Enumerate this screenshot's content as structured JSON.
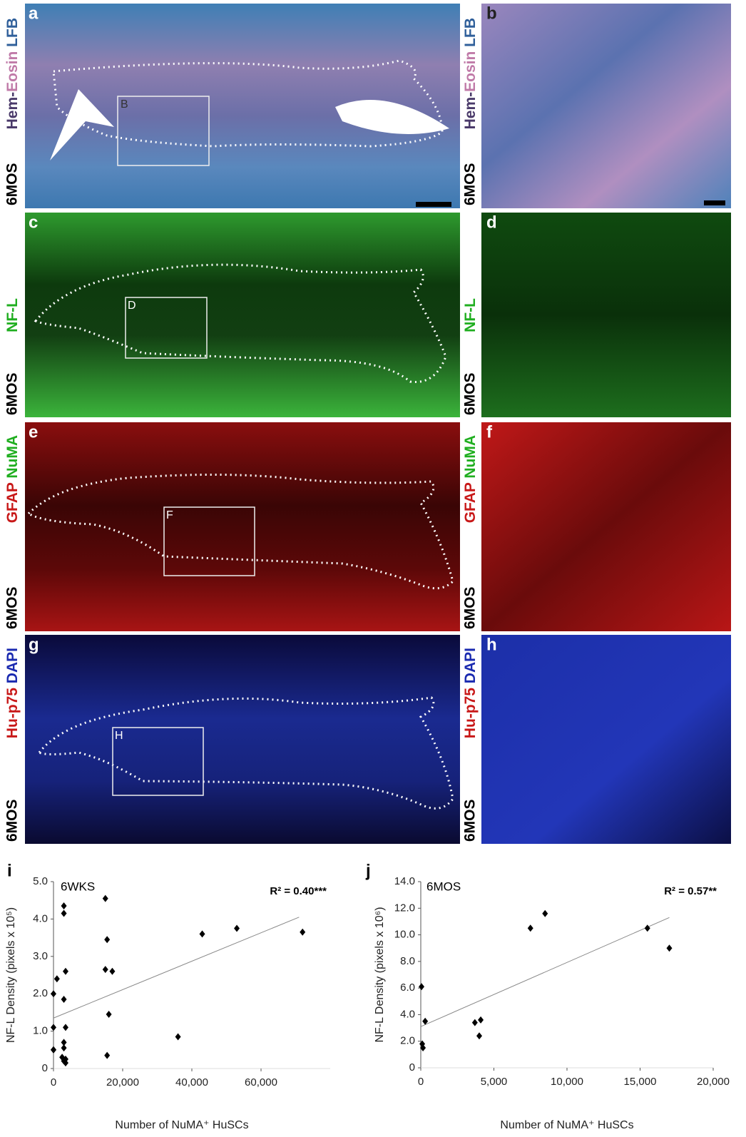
{
  "panels": [
    {
      "letter": "a",
      "stain": [
        "Hem-",
        "Eosin",
        "LFB"
      ],
      "time": "6MOS",
      "inset": "B"
    },
    {
      "letter": "b",
      "stain": [
        "Hem-",
        "Eosin",
        "LFB"
      ],
      "time": "6MOS"
    },
    {
      "letter": "c",
      "stain": [
        "NF-L"
      ],
      "time": "6MOS",
      "inset": "D"
    },
    {
      "letter": "d",
      "stain": [
        "NF-L"
      ],
      "time": "6MOS"
    },
    {
      "letter": "e",
      "stain": [
        "GFAP",
        "NuMA"
      ],
      "time": "6MOS",
      "inset": "F"
    },
    {
      "letter": "f",
      "stain": [
        "GFAP",
        "NuMA"
      ],
      "time": "6MOS"
    },
    {
      "letter": "g",
      "stain": [
        "Hu-p75",
        "DAPI"
      ],
      "time": "6MOS",
      "inset": "H"
    },
    {
      "letter": "h",
      "stain": [
        "Hu-p75",
        "DAPI"
      ],
      "time": "6MOS"
    }
  ],
  "chart_data": [
    {
      "type": "scatter",
      "label": "i",
      "title": "6WKS",
      "annotation": "R² = 0.40***",
      "x_label": "Number of NuMA⁺ HuSCs",
      "y_label": "NF-L Density (pixels x 10⁵)",
      "color": "#000000",
      "x": [
        0,
        0,
        0,
        0,
        1000,
        3000,
        3000,
        3000,
        3500,
        3500,
        3000,
        3000,
        2500,
        3000,
        3500,
        3500,
        15000,
        15500,
        15000,
        17000,
        16000,
        15500,
        36000,
        43000,
        53000,
        72000
      ],
      "values": [
        0.5,
        0.5,
        1.1,
        2.0,
        2.4,
        4.35,
        4.15,
        1.85,
        2.6,
        1.1,
        0.7,
        0.55,
        0.3,
        0.2,
        0.15,
        0.25,
        4.55,
        3.45,
        2.65,
        2.6,
        1.45,
        0.35,
        0.85,
        3.6,
        3.75,
        3.65
      ],
      "trend": {
        "x": [
          0,
          71000
        ],
        "values": [
          1.35,
          4.05
        ]
      },
      "xlim": [
        0,
        80000
      ],
      "ylim": [
        0,
        5
      ],
      "xticks": [
        0,
        {
          "value": 20000,
          "label": "20,000"
        },
        {
          "value": 40000,
          "label": "40,000"
        },
        {
          "value": 60000,
          "label": "60,000"
        }
      ],
      "yticks": [
        0,
        {
          "value": 1,
          "label": "1.0"
        },
        {
          "value": 2,
          "label": "2.0"
        },
        {
          "value": 3,
          "label": "3.0"
        },
        {
          "value": 4,
          "label": "4.0"
        },
        {
          "value": 5,
          "label": "5.0"
        }
      ]
    },
    {
      "type": "scatter",
      "label": "j",
      "title": "6MOS",
      "annotation": "R² = 0.57**",
      "x_label": "Number of NuMA⁺ HuSCs",
      "y_label": "NF-L Density (pixels x 10⁶)",
      "color": "#000000",
      "x": [
        50,
        100,
        150,
        300,
        3700,
        4100,
        4000,
        7500,
        8500,
        15500,
        17000
      ],
      "values": [
        6.1,
        1.8,
        1.5,
        3.5,
        3.4,
        3.6,
        2.4,
        10.5,
        11.6,
        10.5,
        9.0
      ],
      "trend": {
        "x": [
          0,
          17000
        ],
        "values": [
          3.1,
          11.3
        ]
      },
      "xlim": [
        0,
        20000
      ],
      "ylim": [
        0,
        14
      ],
      "xticks": [
        0,
        {
          "value": 5000,
          "label": "5,000"
        },
        {
          "value": 10000,
          "label": "10,000"
        },
        {
          "value": 15000,
          "label": "15,000"
        },
        {
          "value": 20000,
          "label": "20,000"
        }
      ],
      "yticks": [
        0,
        {
          "value": 2,
          "label": "2.0"
        },
        {
          "value": 4,
          "label": "4.0"
        },
        {
          "value": 6,
          "label": "6.0"
        },
        {
          "value": 8,
          "label": "8.0"
        },
        {
          "value": 10,
          "label": "10.0"
        },
        {
          "value": 12,
          "label": "12.0"
        },
        {
          "value": 14,
          "label": "14.0"
        }
      ]
    }
  ]
}
